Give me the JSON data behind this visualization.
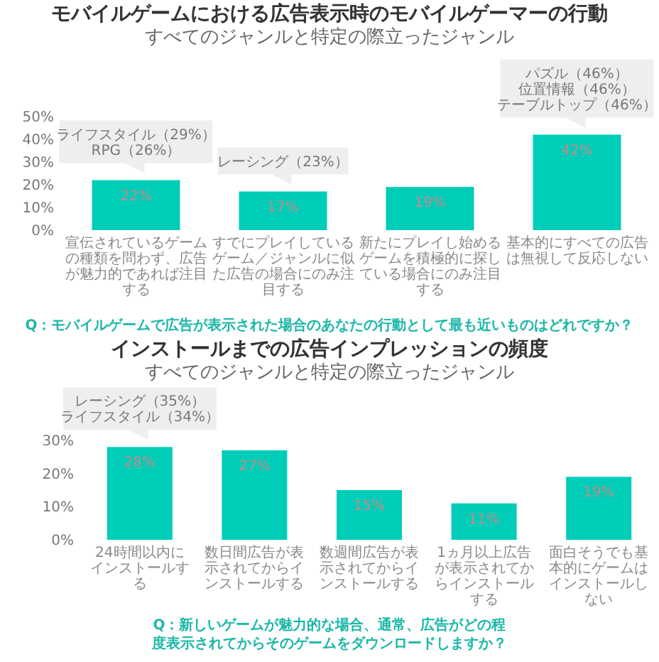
{
  "chart_data": [
    {
      "type": "bar",
      "title": "モバイルゲームにおける広告表示時のモバイルゲーマーの行動",
      "subtitle": "すべてのジャンルと特定の際立ったジャンル",
      "categories": [
        "宣伝されているゲームの種類を問わず、広告が魅力的であれば注目する",
        "すでにプレイしているゲーム／ジャンルに似た広告の場合にのみ注目する",
        "新たにプレイし始めるゲームを積極的に探している場合にのみ注目する",
        "基本的にすべての広告は無視して反応しない"
      ],
      "values": [
        22,
        17,
        19,
        42
      ],
      "color": "#00cdb8",
      "ylim": [
        0,
        50
      ],
      "yticks": [
        {
          "value": 0,
          "label": "0%"
        },
        {
          "value": 10,
          "label": "10%"
        },
        {
          "value": 20,
          "label": "20%"
        },
        {
          "value": 30,
          "label": "30%"
        },
        {
          "value": 40,
          "label": "40%"
        },
        {
          "value": 50,
          "label": "50%"
        }
      ],
      "value_labels": [
        "22%",
        "17%",
        "19%",
        "42%"
      ],
      "grid": false,
      "annotations": [
        {
          "text": "ライフスタイル（29%）RPG（26%）",
          "x": "宣伝されているゲームの種類を問わず、広告が魅力的であれば注目する",
          "y": 22
        },
        {
          "text": "レーシング（23%）",
          "x": "すでにプレイしているゲーム／ジャンルに似た広告の場合にのみ注目する",
          "y": 17
        },
        {
          "text": "パズル（46%）位置情報（46%）テーブルトップ（46%）",
          "x": "基本的にすべての広告は無視して反応しない",
          "y": 42
        },
        "Q：モバイルゲームで広告が表示された場合のあなたの行動として最も近いものはどれですか？"
      ]
    },
    {
      "type": "bar",
      "title": "インストールまでの広告インプレッションの頻度",
      "subtitle": "すべてのジャンルと特定の際立ったジャンル",
      "categories": [
        "24時間以内にインストールする",
        "数日間広告が表示されてからインストールする",
        "数週間広告が表示されてからインストールする",
        "1ヵ月以上広告が表示されてからインストールする",
        "面白そうでも基本的にゲームはインストールしない"
      ],
      "values": [
        28,
        27,
        15,
        11,
        19
      ],
      "color": "#00cdb8",
      "ylim": [
        0,
        30
      ],
      "yticks": [
        {
          "value": 0,
          "label": "0%"
        },
        {
          "value": 10,
          "label": "10%"
        },
        {
          "value": 20,
          "label": "20%"
        },
        {
          "value": 30,
          "label": "30%"
        }
      ],
      "value_labels": [
        "28%",
        "27%",
        "15%",
        "11%",
        "19%"
      ],
      "grid": false,
      "annotations": [
        {
          "text": "レーシング（35%）ライフスタイル（34%）",
          "x": "24時間以内にインストールする",
          "y": 28
        },
        "Q：新しいゲームが魅力的な場合、通常、広告がどの程度表示されてからそのゲームをダウンロードしますか？"
      ]
    }
  ]
}
